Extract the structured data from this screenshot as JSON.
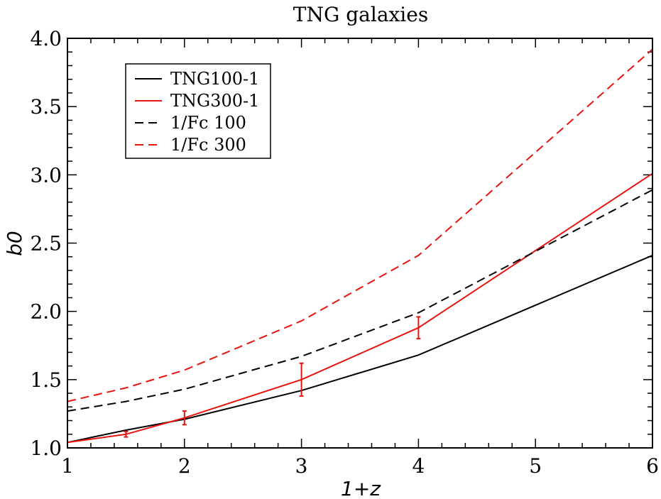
{
  "chart_data": {
    "type": "line",
    "title": "TNG galaxies",
    "xlabel": "1+z",
    "ylabel": "b0",
    "xlim": [
      1,
      6
    ],
    "ylim": [
      1.0,
      4.0
    ],
    "x_ticks": [
      1,
      2,
      3,
      4,
      5,
      6
    ],
    "x_tick_labels": [
      "1",
      "2",
      "3",
      "4",
      "5",
      "6"
    ],
    "y_ticks": [
      1.0,
      1.5,
      2.0,
      2.5,
      3.0,
      3.5,
      4.0
    ],
    "y_tick_labels": [
      "1.0",
      "1.5",
      "2.0",
      "2.5",
      "3.0",
      "3.5",
      "4.0"
    ],
    "grid": false,
    "legend_position": "top-left",
    "series": [
      {
        "name": "TNG100-1",
        "color": "#000000",
        "dash": "solid",
        "x": [
          1,
          1.5,
          2,
          3,
          4,
          6
        ],
        "y": [
          1.04,
          1.13,
          1.21,
          1.42,
          1.68,
          2.41
        ]
      },
      {
        "name": "TNG300-1",
        "color": "#e8140f",
        "dash": "solid",
        "x": [
          1,
          1.5,
          2,
          3,
          4,
          6
        ],
        "y": [
          1.04,
          1.1,
          1.22,
          1.5,
          1.88,
          3.01
        ],
        "error": [
          0,
          0.02,
          0.05,
          0.12,
          0.08,
          0
        ]
      },
      {
        "name": "1/Fc 100",
        "color": "#000000",
        "dash": "dashed",
        "x": [
          1,
          1.5,
          2,
          3,
          4,
          6
        ],
        "y": [
          1.27,
          1.34,
          1.43,
          1.67,
          1.99,
          2.89
        ]
      },
      {
        "name": "1/Fc 300",
        "color": "#e8140f",
        "dash": "dashed",
        "x": [
          1,
          1.5,
          2,
          3,
          4,
          6
        ],
        "y": [
          1.34,
          1.44,
          1.57,
          1.93,
          2.41,
          3.92
        ]
      }
    ]
  }
}
